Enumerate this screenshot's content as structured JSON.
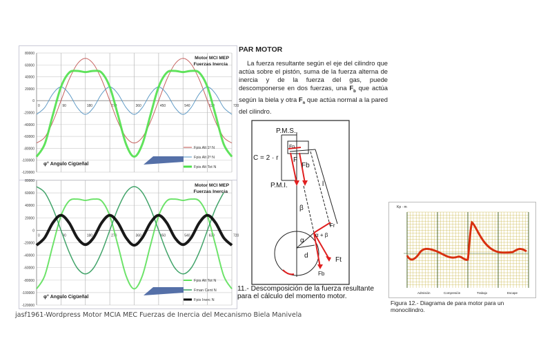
{
  "chart_data": [
    {
      "type": "line",
      "title": "Motor MCI MEP",
      "subtitle": "Fuerzas Inercia",
      "xlabel": "φ° Angulo Cigüeñal",
      "xlim": [
        0,
        720
      ],
      "ylim": [
        -120000,
        80000
      ],
      "xticks": [
        "0",
        "90",
        "180",
        "270",
        "360",
        "450",
        "540",
        "630",
        "720"
      ],
      "yticks": [
        "80000",
        "60000",
        "40000",
        "20000",
        "0",
        "-20000",
        "-40000",
        "-60000",
        "-80000",
        "-100000",
        "-120000"
      ],
      "grid": true,
      "legend": "bottom-right",
      "x": [
        0,
        30,
        60,
        90,
        120,
        150,
        180,
        210,
        240,
        270,
        300,
        330,
        360,
        390,
        420,
        450,
        480,
        510,
        540,
        570,
        600,
        630,
        660,
        690,
        720
      ],
      "series": [
        {
          "name": "Fpis Alt 1º N",
          "color": "#c0504d",
          "width": 1,
          "values": [
            -71000,
            -61500,
            -35500,
            0,
            35500,
            61500,
            71000,
            61500,
            35500,
            0,
            -35500,
            -61500,
            -71000,
            -61500,
            -35500,
            0,
            35500,
            61500,
            71000,
            61500,
            35500,
            0,
            -35500,
            -61500,
            -71000
          ]
        },
        {
          "name": "Fpis Alt 2º N",
          "color": "#4f90c0",
          "width": 1,
          "values": [
            -23000,
            -11500,
            11500,
            23000,
            11500,
            -11500,
            -23000,
            -11500,
            11500,
            23000,
            11500,
            -11500,
            -23000,
            -11500,
            11500,
            23000,
            11500,
            -11500,
            -23000,
            -11500,
            11500,
            23000,
            11500,
            -11500,
            -23000
          ]
        },
        {
          "name": "Fpis Alt Tot N",
          "color": "#4fe04a",
          "width": 3,
          "values": [
            -94000,
            -73000,
            -24000,
            23000,
            47000,
            50000,
            48000,
            50000,
            47000,
            23000,
            -24000,
            -73000,
            -94000,
            -73000,
            -24000,
            23000,
            47000,
            50000,
            48000,
            50000,
            47000,
            23000,
            -24000,
            -73000,
            -94000
          ]
        }
      ],
      "watermark": "jasf1961"
    },
    {
      "type": "line",
      "title": "Motor MCI MEP",
      "subtitle": "Fuerzas Inercia",
      "xlabel": "φ° Angulo Cigüeñal",
      "xlim": [
        0,
        720
      ],
      "ylim": [
        -120000,
        80000
      ],
      "xticks": [
        "0",
        "90",
        "180",
        "270",
        "360",
        "450",
        "540",
        "630",
        "720"
      ],
      "yticks": [
        "80000",
        "60000",
        "40000",
        "20000",
        "0",
        "-20000",
        "-40000",
        "-60000",
        "-80000",
        "-100000",
        "-120000"
      ],
      "grid": true,
      "legend": "bottom-right",
      "x": [
        0,
        30,
        60,
        90,
        120,
        150,
        180,
        210,
        240,
        270,
        300,
        330,
        360,
        390,
        420,
        450,
        480,
        510,
        540,
        570,
        600,
        630,
        660,
        690,
        720
      ],
      "series": [
        {
          "name": "Fpis Alt Tot N",
          "color": "#5de05a",
          "width": 2,
          "values": [
            -94000,
            -73000,
            -24000,
            23000,
            47000,
            50000,
            48000,
            50000,
            47000,
            23000,
            -24000,
            -73000,
            -94000,
            -73000,
            -24000,
            23000,
            47000,
            50000,
            48000,
            50000,
            47000,
            23000,
            -24000,
            -73000,
            -94000
          ]
        },
        {
          "name": "Fman Cent N",
          "color": "#2e9a5a",
          "width": 1.5,
          "values": [
            70000,
            60600,
            35000,
            0,
            -35000,
            -60600,
            -70000,
            -60600,
            -35000,
            0,
            35000,
            60600,
            70000,
            60600,
            35000,
            0,
            -35000,
            -60600,
            -70000,
            -60600,
            -35000,
            0,
            35000,
            60600,
            null
          ]
        },
        {
          "name": "Fpis Inerc N",
          "color": "#000000",
          "width": 4,
          "values": [
            -24000,
            -12000,
            12000,
            24000,
            12000,
            -12000,
            -23000,
            -12000,
            12000,
            24000,
            12000,
            -12000,
            -24000,
            -12000,
            12000,
            24000,
            12000,
            -12000,
            -23000,
            -12000,
            12000,
            24000,
            12000,
            -12000,
            -24000
          ]
        }
      ],
      "watermark": "jasf1961"
    }
  ],
  "text_section": {
    "title": "PAR MOTOR",
    "body_1": "La fuerza resultante según el eje del cilindro que actúa sobre el pistón, suma de la fuerza alterna de inercia y de la fuerza del gas, puede descomponerse en dos fuerzas, una ",
    "fb": "F",
    "fb_sub": "b",
    "body_2": " que actúa según la biela y otra ",
    "fn": "F",
    "fn_sub": "n",
    "body_3": " que actúa normal a la pared del cilindro."
  },
  "diagram": {
    "labels": {
      "pms": "P.M.S.",
      "pmi": "P.M.I.",
      "stroke": "C = 2 · r",
      "fn": "Fn",
      "f": "F",
      "fb": "Fb",
      "l": "l",
      "beta": "β",
      "alpha": "α",
      "alpha_beta": "α + β",
      "d": "d",
      "fr": "Fr",
      "ft": "Ft",
      "fb2": "Fb"
    },
    "caption": "11.- Descomposición de la fuerza resultante para el cálculo del momento motor."
  },
  "torque_diagram": {
    "ylabel": "Kp · m",
    "phases": [
      "Admisión",
      "Compresión",
      "Trabajo",
      "Escape"
    ],
    "caption": "Figura 12.- Diagrama de para motor para un monocilindro.",
    "grid_color": "#6b8a2a",
    "curve_color": "#d8300f"
  },
  "footer": "jasf1961-Wordpress Motor MCIA MEC Fuerzas de Inercia del Mecanismo Biela Manivela"
}
